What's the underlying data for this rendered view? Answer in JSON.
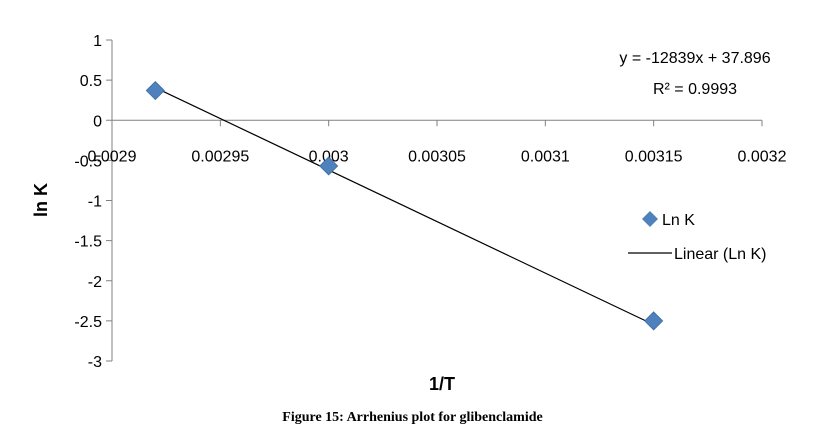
{
  "chart_data": {
    "type": "scatter",
    "xlabel": "1/T",
    "ylabel": "ln K",
    "xlim": [
      0.0029,
      0.0032
    ],
    "ylim": [
      -3,
      1
    ],
    "x_ticks": [
      "0.0029",
      "0.00295",
      "0.003",
      "0.00305",
      "0.0031",
      "0.00315",
      "0.0032"
    ],
    "x_tick_values": [
      0.0029,
      0.00295,
      0.003,
      0.00305,
      0.0031,
      0.00315,
      0.0032
    ],
    "y_ticks": [
      "1",
      "0.5",
      "0",
      "-0.5",
      "-1",
      "-1.5",
      "-2",
      "-2.5",
      "-3"
    ],
    "y_tick_values": [
      1,
      0.5,
      0,
      -0.5,
      -1,
      -1.5,
      -2,
      -2.5,
      -3
    ],
    "series": [
      {
        "name": "Ln K",
        "color": "#4F81BD",
        "marker": "diamond",
        "x": [
          0.00292,
          0.003,
          0.00315
        ],
        "y": [
          0.37,
          -0.57,
          -2.5
        ]
      }
    ],
    "trendline": {
      "name": "Linear (Ln K)",
      "color": "#000000",
      "slope": -12839,
      "intercept": 37.896,
      "x_range": [
        0.00292,
        0.00315
      ]
    },
    "equation": "y = -12839x + 37.896",
    "r_squared": "R² = 0.9993",
    "legend_position": "right",
    "grid": false
  },
  "caption": "Figure 15: Arrhenius plot for glibenclamide"
}
